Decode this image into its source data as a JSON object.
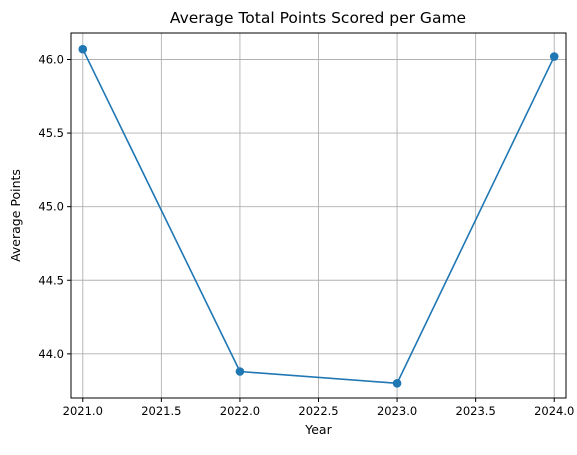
{
  "chart_data": {
    "type": "line",
    "title": "Average Total Points Scored per Game",
    "xlabel": "Year",
    "ylabel": "Average Points",
    "xlim": [
      2020.925,
      2024.075
    ],
    "ylim": [
      43.7,
      46.18
    ],
    "xticks": [
      2021.0,
      2021.5,
      2022.0,
      2022.5,
      2023.0,
      2023.5,
      2024.0
    ],
    "xtick_labels": [
      "2021.0",
      "2021.5",
      "2022.0",
      "2022.5",
      "2023.0",
      "2023.5",
      "2024.0"
    ],
    "yticks": [
      44.0,
      44.5,
      45.0,
      45.5,
      46.0
    ],
    "ytick_labels": [
      "44.0",
      "44.5",
      "45.0",
      "45.5",
      "46.0"
    ],
    "grid": true,
    "series": [
      {
        "x": [
          2021,
          2022,
          2023,
          2024
        ],
        "y": [
          46.07,
          43.88,
          43.8,
          46.02
        ],
        "color": "#1f77b4",
        "marker": "circle"
      }
    ]
  }
}
